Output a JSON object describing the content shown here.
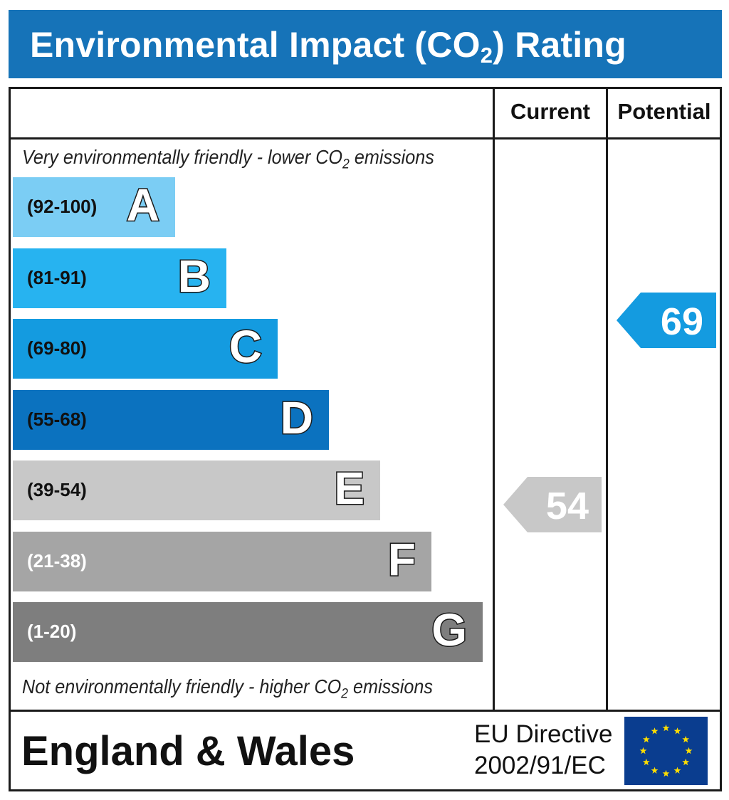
{
  "title": {
    "main": "Environmental Impact (CO",
    "sub": "2",
    "end": ") Rating"
  },
  "columns": {
    "current": "Current",
    "potential": "Potential"
  },
  "captions": {
    "top_pre": "Very environmentally friendly - lower CO",
    "top_sub": "2",
    "top_post": " emissions",
    "bottom_pre": "Not environmentally friendly - higher CO",
    "bottom_sub": "2",
    "bottom_post": " emissions"
  },
  "chart_data": {
    "type": "bar",
    "bands": [
      {
        "letter": "A",
        "range": "(92-100)",
        "min": 92,
        "max": 100,
        "color": "#7bcdf4",
        "text_color": "#111111"
      },
      {
        "letter": "B",
        "range": "(81-91)",
        "min": 81,
        "max": 91,
        "color": "#27b3f0",
        "text_color": "#111111"
      },
      {
        "letter": "C",
        "range": "(69-80)",
        "min": 69,
        "max": 80,
        "color": "#149be0",
        "text_color": "#111111"
      },
      {
        "letter": "D",
        "range": "(55-68)",
        "min": 55,
        "max": 68,
        "color": "#0b72bf",
        "text_color": "#111111"
      },
      {
        "letter": "E",
        "range": "(39-54)",
        "min": 39,
        "max": 54,
        "color": "#c8c8c8",
        "text_color": "#111111"
      },
      {
        "letter": "F",
        "range": "(21-38)",
        "min": 21,
        "max": 38,
        "color": "#a5a5a5",
        "text_color": "#ffffff"
      },
      {
        "letter": "G",
        "range": "(1-20)",
        "min": 1,
        "max": 20,
        "color": "#7e7e7e",
        "text_color": "#ffffff"
      }
    ],
    "current": {
      "value": "54",
      "color": "#c8c8c8"
    },
    "potential": {
      "value": "69",
      "color": "#149be0"
    }
  },
  "footer": {
    "region": "England & Wales",
    "directive_line1": "EU Directive",
    "directive_line2": "2002/91/EC",
    "flag_color": "#0a3d8f",
    "star_color": "#ffde00"
  }
}
